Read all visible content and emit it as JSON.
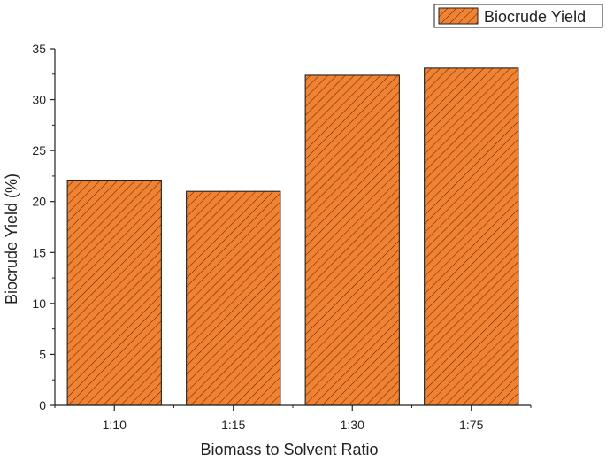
{
  "chart_data": {
    "type": "bar",
    "categories": [
      "1:10",
      "1:15",
      "1:30",
      "1:75"
    ],
    "series": [
      {
        "name": "Biocrude Yield",
        "values": [
          22.1,
          21.0,
          32.4,
          33.1
        ]
      }
    ],
    "xlabel": "Biomass to Solvent Ratio",
    "ylabel": "Biocrude Yield (%)",
    "ylim": [
      0,
      35
    ],
    "yticks": [
      0,
      5,
      10,
      15,
      20,
      25,
      30,
      35
    ],
    "grid": false,
    "legend_position": "top-right",
    "colors": {
      "bar_fill": "#f08232",
      "bar_hatch": "#5a2a0a",
      "axis": "#222222"
    }
  }
}
